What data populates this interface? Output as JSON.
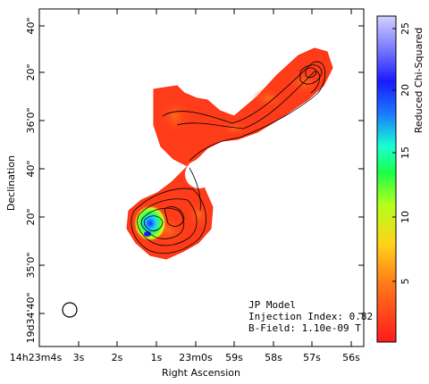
{
  "plot": {
    "x_axis_title": "Right Ascension",
    "y_axis_title": "Declination",
    "x_tick_labels": [
      "14h23m4s",
      "3s",
      "2s",
      "1s",
      "23m0s",
      "59s",
      "58s",
      "57s",
      "56s"
    ],
    "y_tick_labels": [
      "40\"",
      "20\"",
      "36'0\"",
      "40\"",
      "20\"",
      "35'0\"",
      "19d34'40\""
    ]
  },
  "annotation": {
    "model": "JP Model",
    "injection_index": "Injection Index: 0.82",
    "b_field": "B-Field: 1.10e-09 T"
  },
  "colorbar": {
    "title": "Reduced Chi-Squared",
    "tick_labels": [
      "5",
      "10",
      "15",
      "20",
      "25"
    ],
    "colors": [
      "#ff1a1a",
      "#ff7a1a",
      "#ffd21a",
      "#b4ff1a",
      "#1aff4a",
      "#1affd2",
      "#1a7aff",
      "#1a1aff",
      "#7a7aff",
      "#d2d2ff"
    ]
  }
}
